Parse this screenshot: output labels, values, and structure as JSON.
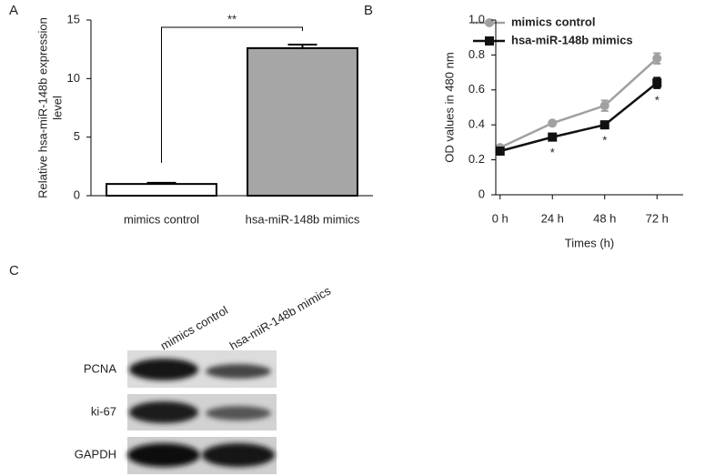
{
  "chart_data": [
    {
      "type": "bar",
      "panel_label": "A",
      "ylabel": [
        "Relative hsa-miR-148b expression",
        "level"
      ],
      "categories": [
        "mimics control",
        "hsa-miR-148b mimics"
      ],
      "values": [
        1.0,
        12.6
      ],
      "errors": [
        0.1,
        0.3
      ],
      "colors": [
        "#ffffff",
        "#a6a6a6"
      ],
      "ylim": [
        0,
        15
      ],
      "yticks": [
        0,
        5,
        10,
        15
      ],
      "significance": "**"
    },
    {
      "type": "line",
      "panel_label": "B",
      "xlabel": "Times (h)",
      "ylabel": "OD values in 480 nm",
      "categories": [
        "0 h",
        "24 h",
        "48 h",
        "72 h"
      ],
      "series": [
        {
          "name": "mimics control",
          "color": "#a0a0a0",
          "marker": "circle",
          "values": [
            0.27,
            0.41,
            0.51,
            0.78
          ],
          "errors": [
            0.01,
            0.01,
            0.03,
            0.03
          ]
        },
        {
          "name": "hsa-miR-148b mimics",
          "color": "#111111",
          "marker": "square",
          "values": [
            0.25,
            0.33,
            0.4,
            0.64
          ],
          "errors": [
            0.01,
            0.02,
            0.02,
            0.03
          ]
        }
      ],
      "significance": [
        null,
        "*",
        "*",
        "*"
      ],
      "ylim": [
        0,
        1
      ],
      "yticks": [
        0,
        0.2,
        0.4,
        0.6,
        0.8,
        {
          "value": 1,
          "label": "1.0"
        }
      ]
    }
  ],
  "blot": {
    "panel_label": "C",
    "columns": [
      "mimics control",
      "hsa-miR-148b mimics"
    ],
    "rows": [
      "PCNA",
      "ki-67",
      "GAPDH"
    ]
  }
}
